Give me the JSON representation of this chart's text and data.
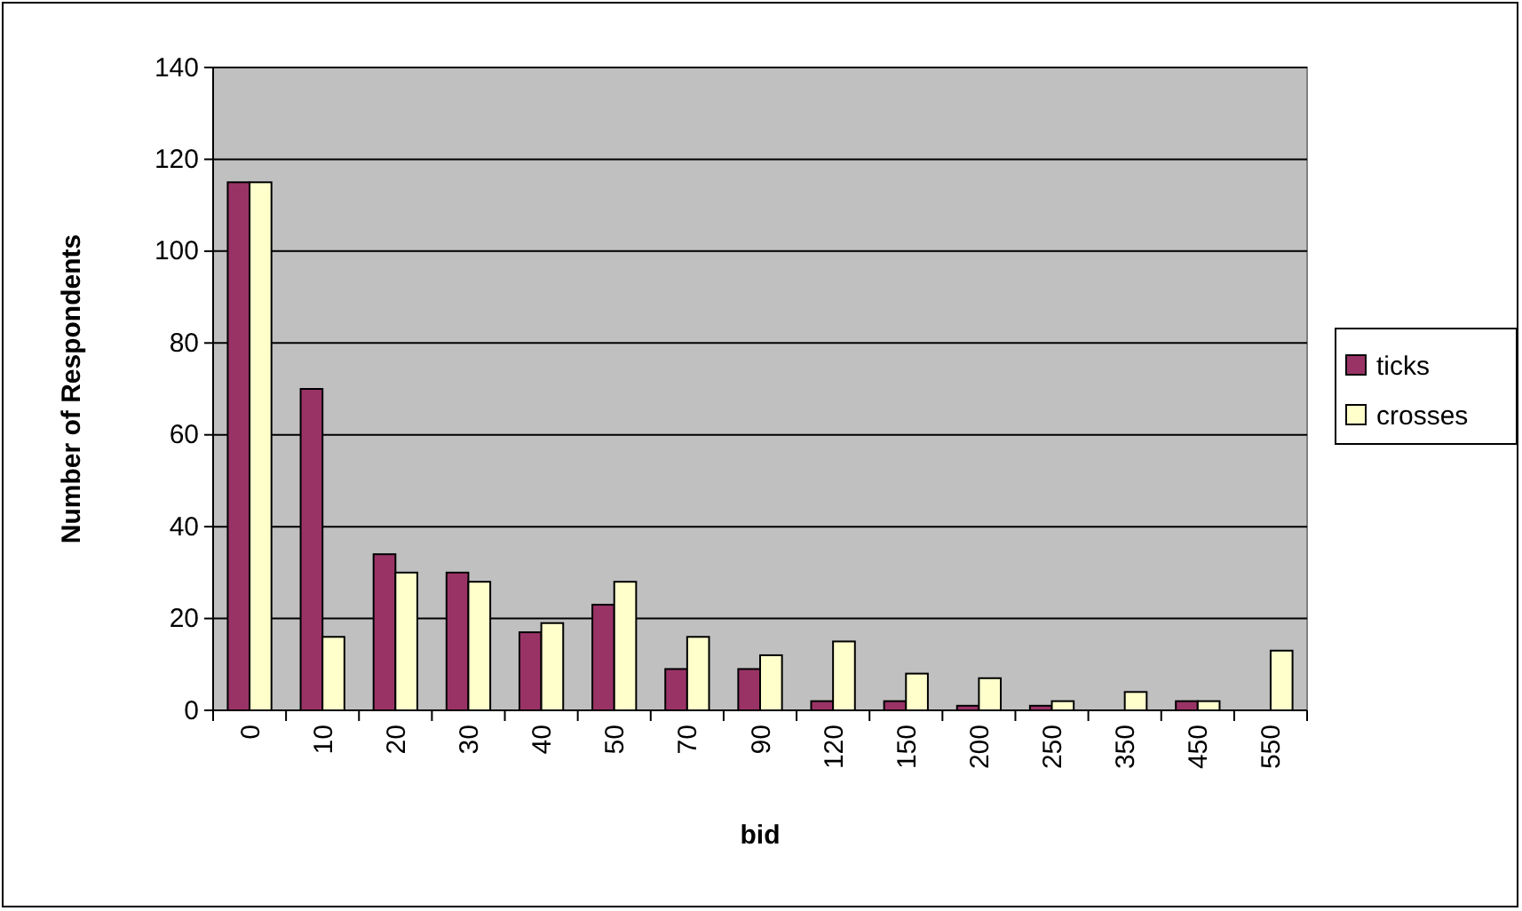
{
  "chart_data": {
    "type": "bar",
    "xlabel": "bid",
    "ylabel": "Number of Respondents",
    "categories": [
      "0",
      "10",
      "20",
      "30",
      "40",
      "50",
      "70",
      "90",
      "120",
      "150",
      "200",
      "250",
      "350",
      "450",
      "550"
    ],
    "series": [
      {
        "name": "ticks",
        "color": "#993366",
        "values": [
          115,
          70,
          34,
          30,
          17,
          23,
          9,
          9,
          2,
          2,
          1,
          1,
          0,
          2,
          0
        ]
      },
      {
        "name": "crosses",
        "color": "#ffffcc",
        "values": [
          115,
          16,
          30,
          28,
          19,
          28,
          16,
          12,
          15,
          8,
          7,
          2,
          4,
          2,
          13
        ]
      }
    ],
    "ylim": [
      0,
      140
    ],
    "yticks": [
      0,
      20,
      40,
      60,
      80,
      100,
      120,
      140
    ],
    "grid": "y",
    "legend": "right"
  }
}
